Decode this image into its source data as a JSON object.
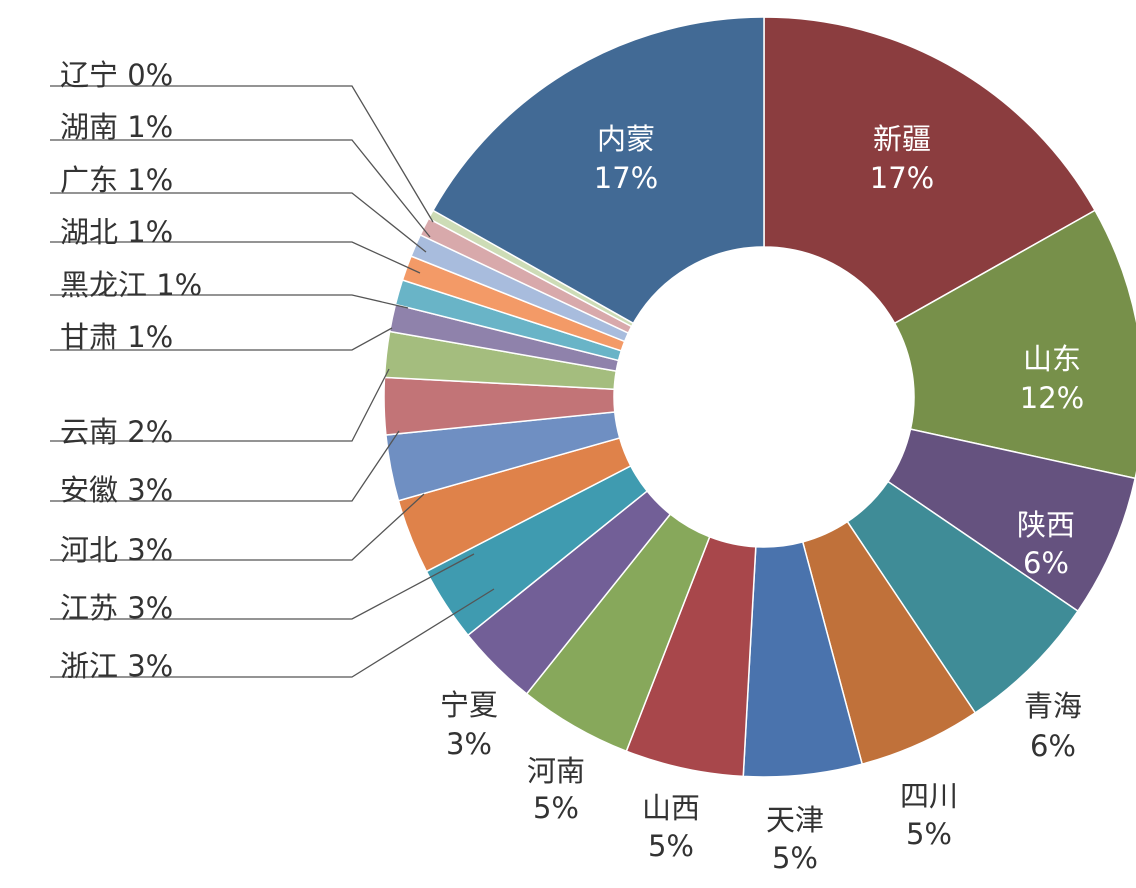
{
  "chart_data": {
    "type": "pie",
    "donut": true,
    "title": "",
    "legend": "none",
    "slices": [
      {
        "name": "新疆",
        "percent_label": "17%",
        "value": 17.4,
        "color": "#8b3d3f"
      },
      {
        "name": "山东",
        "percent_label": "12%",
        "value": 12.0,
        "color": "#77904a"
      },
      {
        "name": "陕西",
        "percent_label": "6%",
        "value": 6.3,
        "color": "#65527f"
      },
      {
        "name": "青海",
        "percent_label": "6%",
        "value": 6.3,
        "color": "#3f8c97"
      },
      {
        "name": "四川",
        "percent_label": "5%",
        "value": 5.4,
        "color": "#c0713a"
      },
      {
        "name": "天津",
        "percent_label": "5%",
        "value": 5.2,
        "color": "#4a73ad"
      },
      {
        "name": "山西",
        "percent_label": "5%",
        "value": 5.2,
        "color": "#a8474b"
      },
      {
        "name": "河南",
        "percent_label": "5%",
        "value": 5.0,
        "color": "#87a85b"
      },
      {
        "name": "宁夏",
        "percent_label": "3%",
        "value": 3.6,
        "color": "#725f97"
      },
      {
        "name": "浙江",
        "percent_label": "3%",
        "value": 3.3,
        "color": "#3f9bb0"
      },
      {
        "name": "江苏",
        "percent_label": "3%",
        "value": 3.3,
        "color": "#df824a"
      },
      {
        "name": "河北",
        "percent_label": "3%",
        "value": 2.9,
        "color": "#6f8fc2"
      },
      {
        "name": "安徽",
        "percent_label": "3%",
        "value": 2.5,
        "color": "#c27477"
      },
      {
        "name": "云南",
        "percent_label": "2%",
        "value": 2.0,
        "color": "#a4bd7e"
      },
      {
        "name": "甘肃",
        "percent_label": "1%",
        "value": 1.2,
        "color": "#8f82ab"
      },
      {
        "name": "黑龙江",
        "percent_label": "1%",
        "value": 1.1,
        "color": "#69b4c7"
      },
      {
        "name": "湖北",
        "percent_label": "1%",
        "value": 1.1,
        "color": "#f39a67"
      },
      {
        "name": "广东",
        "percent_label": "1%",
        "value": 1.0,
        "color": "#a8bcdd"
      },
      {
        "name": "湖南",
        "percent_label": "1%",
        "value": 0.8,
        "color": "#d8a9ab"
      },
      {
        "name": "辽宁",
        "percent_label": "0%",
        "value": 0.4,
        "color": "#cddcb6"
      },
      {
        "name": "内蒙",
        "percent_label": "17%",
        "value": 17.4,
        "color": "#426a95"
      }
    ]
  }
}
